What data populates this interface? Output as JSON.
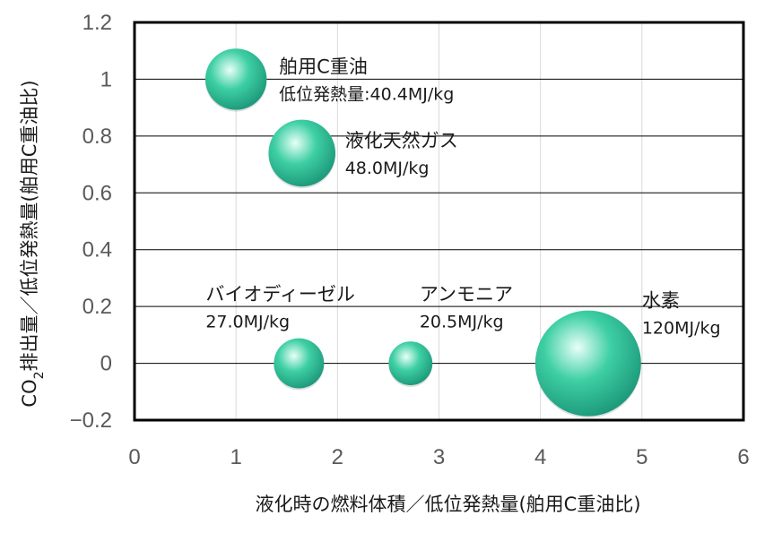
{
  "chart_data": {
    "type": "bubble",
    "xlabel": "液化時の燃料体積／低位発熱量(舶用C重油比)",
    "ylabel_main": "CO",
    "ylabel_sub": "2",
    "ylabel_rest": "排出量／低位発熱量(舶用C重油比)",
    "xlim": [
      0,
      6
    ],
    "ylim": [
      -0.2,
      1.2
    ],
    "x_ticks": [
      "0",
      "1",
      "2",
      "3",
      "4",
      "5",
      "6"
    ],
    "y_ticks": [
      "−0.2",
      "0",
      "0.2",
      "0.4",
      "0.6",
      "0.8",
      "1",
      "1.2"
    ],
    "colors": {
      "bubble": "#3ecfa4",
      "bubble_highlight": "#e8fff7",
      "bubble_dark": "#1a9577"
    },
    "points": [
      {
        "name": "舶用C重油",
        "value_label": "低位発熱量:40.4MJ/kg",
        "x": 1.0,
        "y": 1.0,
        "size": 40.4
      },
      {
        "name": "液化天然ガス",
        "value_label": "48.0MJ/kg",
        "x": 1.65,
        "y": 0.74,
        "size": 48.0
      },
      {
        "name": "バイオディーゼル",
        "value_label": "27.0MJ/kg",
        "x": 1.62,
        "y": 0.0,
        "size": 27.0
      },
      {
        "name": "アンモニア",
        "value_label": "20.5MJ/kg",
        "x": 2.72,
        "y": 0.0,
        "size": 20.5
      },
      {
        "name": "水素",
        "value_label": "120MJ/kg",
        "x": 4.47,
        "y": 0.0,
        "size": 120
      }
    ]
  }
}
